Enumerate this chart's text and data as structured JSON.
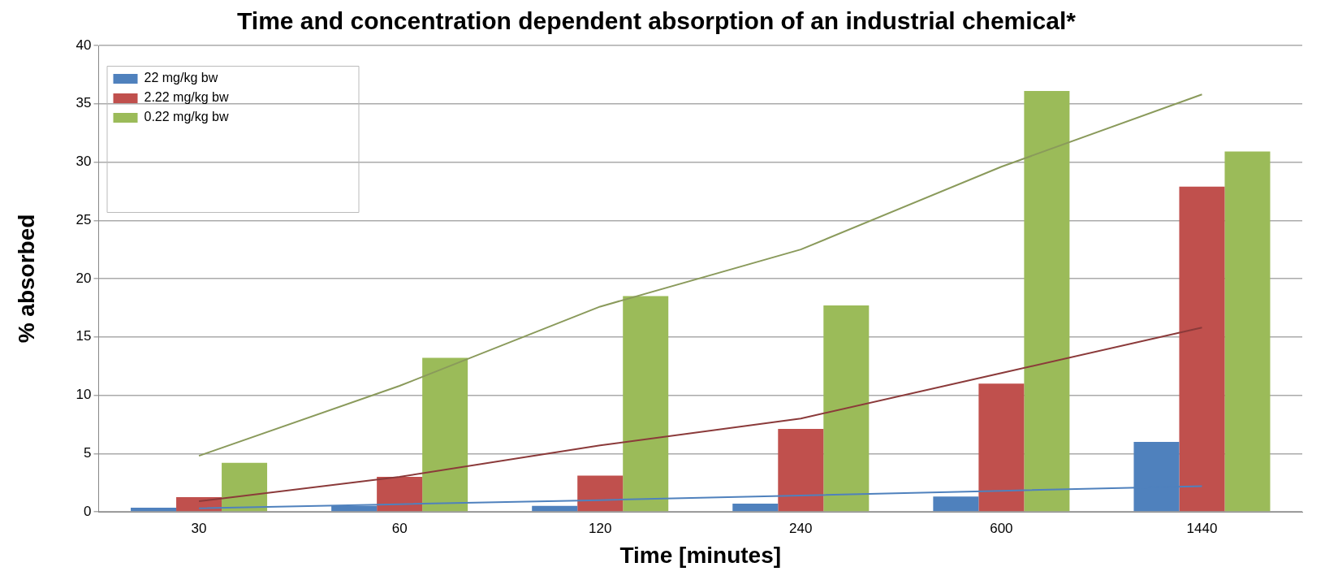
{
  "chart_data": {
    "type": "bar",
    "title": "Time and concentration dependent absorption of an industrial chemical*",
    "xlabel": "Time [minutes]",
    "ylabel": "% absorbed",
    "categories": [
      "30",
      "60",
      "120",
      "240",
      "600",
      "1440"
    ],
    "series": [
      {
        "name": "22 mg/kg bw",
        "color": "#4f81bd",
        "values": [
          0.35,
          0.5,
          0.5,
          0.7,
          1.3,
          6.0
        ]
      },
      {
        "name": "2.22 mg/kg bw",
        "color": "#c0504d",
        "values": [
          1.25,
          3.0,
          3.1,
          7.1,
          11.0,
          27.9
        ]
      },
      {
        "name": "0.22 mg/kg bw",
        "color": "#9bbb59",
        "values": [
          4.2,
          13.2,
          18.5,
          17.7,
          36.1,
          30.9
        ]
      },
      {
        "type": "line",
        "color": "#4f81bd",
        "values": [
          0.3,
          0.65,
          1.0,
          1.4,
          1.8,
          2.2
        ]
      },
      {
        "type": "line",
        "color": "#8b3a3a",
        "values": [
          0.9,
          3.0,
          5.7,
          8.0,
          11.9,
          15.8
        ]
      },
      {
        "type": "line",
        "color": "#8a9a5b",
        "values": [
          4.8,
          10.8,
          17.6,
          22.5,
          29.6,
          35.8
        ]
      }
    ],
    "ylim": [
      0,
      40
    ],
    "yticks": [
      0,
      5,
      10,
      15,
      20,
      25,
      30,
      35,
      40
    ],
    "grid": "y",
    "legend": "top left",
    "marker": "none",
    "line_style": "solid"
  }
}
